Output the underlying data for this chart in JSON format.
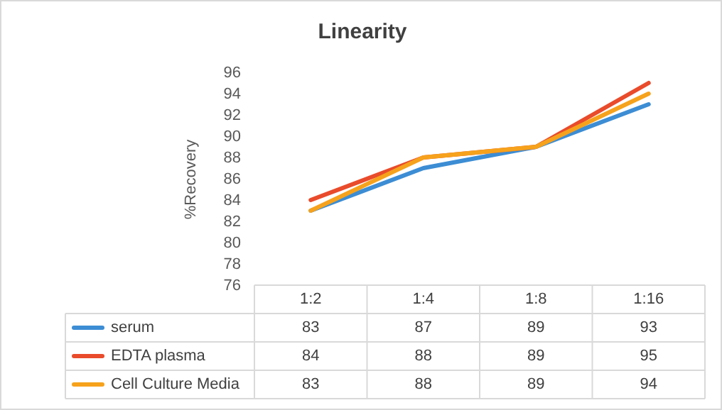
{
  "chart_data": {
    "type": "line",
    "title": "Linearity",
    "ylabel": "%Recovery",
    "categories": [
      "1:2",
      "1:4",
      "1:8",
      "1:16"
    ],
    "series": [
      {
        "name": "serum",
        "color": "#3c8dd4",
        "values": [
          83,
          87,
          89,
          93
        ]
      },
      {
        "name": "EDTA plasma",
        "color": "#e94b2b",
        "values": [
          84,
          88,
          89,
          95
        ]
      },
      {
        "name": "Cell Culture Media",
        "color": "#f6a21c",
        "values": [
          83,
          88,
          89,
          94
        ]
      }
    ],
    "ylim": [
      76,
      96
    ],
    "yticks": [
      76,
      78,
      80,
      82,
      84,
      86,
      88,
      90,
      92,
      94,
      96
    ],
    "data_labels": true,
    "legend": "bottom"
  }
}
